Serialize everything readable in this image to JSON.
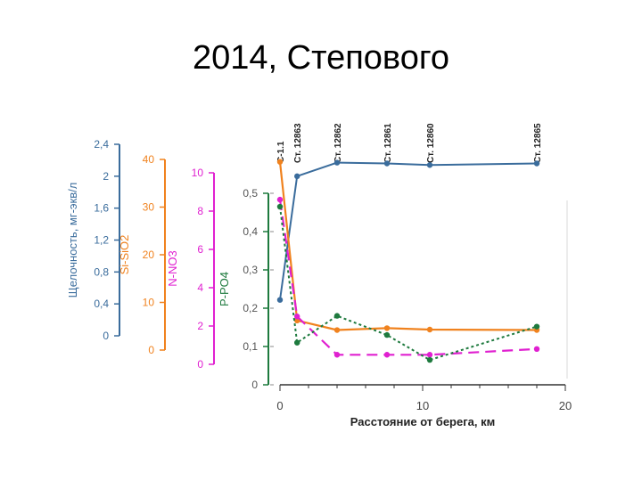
{
  "slide": {
    "title": "2014, Степового"
  },
  "colors": {
    "alkalinity": "#3a6c9c",
    "silica": "#f0821e",
    "nitrate": "#e020d0",
    "phosphate": "#1e7a3e",
    "axis_text": "#555555"
  },
  "chart_data": {
    "type": "line",
    "title": "",
    "xlabel": "Расстояние от берега, км",
    "xlim": [
      0,
      20
    ],
    "x_ticks": [
      "0",
      "10",
      "20"
    ],
    "grid": false,
    "legend": "none",
    "axes": [
      {
        "id": "alk",
        "label": "Щелочность, мг-экв/л",
        "range": [
          0,
          2.4
        ],
        "ticks": [
          "0",
          "0,4",
          "0,8",
          "1,2",
          "1,6",
          "2",
          "2,4"
        ]
      },
      {
        "id": "si",
        "label": "Si-SiO2",
        "range": [
          0,
          40
        ],
        "ticks": [
          "0",
          "10",
          "20",
          "30",
          "40"
        ]
      },
      {
        "id": "no3",
        "label": "N-NO3",
        "range": [
          0,
          10
        ],
        "ticks": [
          "0",
          "2",
          "4",
          "6",
          "8",
          "10"
        ]
      },
      {
        "id": "po4",
        "label": "P-PO4",
        "range": [
          0,
          0.5
        ],
        "ticks": [
          "0",
          "0,1",
          "0,2",
          "0,3",
          "0,4",
          "0,5"
        ]
      }
    ],
    "stations": [
      {
        "label": "С-1.1",
        "x": 0
      },
      {
        "label": "Ст. 12863",
        "x": 1.2
      },
      {
        "label": "Ст. 12862",
        "x": 4.0
      },
      {
        "label": "Ст. 12861",
        "x": 7.5
      },
      {
        "label": "Ст. 12860",
        "x": 10.5
      },
      {
        "label": "Ст. 12865",
        "x": 18.0
      }
    ],
    "series": [
      {
        "id": "alkalinity",
        "axis": "alk",
        "style": "solid",
        "x": [
          0,
          1.2,
          4.0,
          7.5,
          10.5,
          18.0
        ],
        "values": [
          0.45,
          2.0,
          2.17,
          2.16,
          2.14,
          2.16
        ]
      },
      {
        "id": "silica",
        "axis": "si",
        "style": "solid",
        "x": [
          0,
          1.2,
          4.0,
          7.5,
          10.5,
          18.0
        ],
        "values": [
          39.5,
          6.2,
          4.2,
          4.6,
          4.3,
          4.2
        ]
      },
      {
        "id": "nitrate",
        "axis": "no3",
        "style": "longdash",
        "x": [
          0,
          1.2,
          4.0,
          7.5,
          10.5,
          18.0
        ],
        "values": [
          8.6,
          2.5,
          0.5,
          0.5,
          0.5,
          0.8
        ]
      },
      {
        "id": "phosphate",
        "axis": "po4",
        "style": "dotted",
        "x": [
          0,
          1.2,
          4.0,
          7.5,
          10.5,
          18.0
        ],
        "values": [
          0.465,
          0.11,
          0.18,
          0.13,
          0.065,
          0.152
        ]
      }
    ]
  }
}
